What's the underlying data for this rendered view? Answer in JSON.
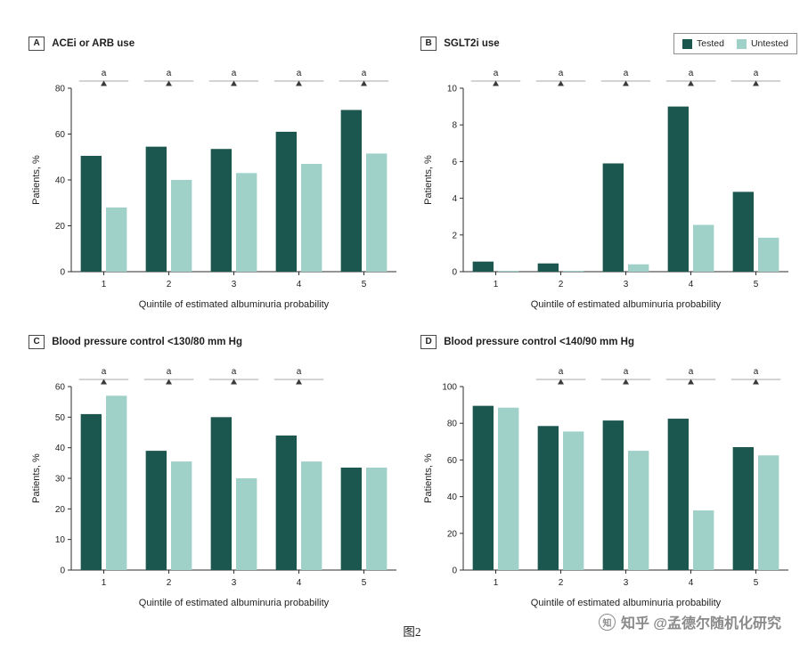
{
  "colors": {
    "tested": "#1c574f",
    "untested": "#9fd1c9",
    "axis": "#2e2e2e",
    "text": "#1f1f1f",
    "sig_line": "#8a8a8a",
    "sig_marker": "#3a3a3a"
  },
  "legend": {
    "tested": "Tested",
    "untested": "Untested"
  },
  "caption": "图2",
  "watermark": "知乎 @孟德尔随机化研究",
  "panels": [
    {
      "label": "A",
      "title": "ACEi or ARB use"
    },
    {
      "label": "B",
      "title": "SGLT2i use"
    },
    {
      "label": "C",
      "title": "Blood pressure control <130/80 mm Hg"
    },
    {
      "label": "D",
      "title": "Blood pressure control <140/90 mm Hg"
    }
  ],
  "chart_data": [
    {
      "type": "bar",
      "title": "ACEi or ARB use",
      "xlabel": "Quintile of estimated albuminuria probability",
      "ylabel": "Patients, %",
      "categories": [
        "1",
        "2",
        "3",
        "4",
        "5"
      ],
      "ylim": [
        0,
        80
      ],
      "yticks": [
        0,
        20,
        40,
        60,
        80
      ],
      "legend_position": "none",
      "grid": false,
      "series": [
        {
          "name": "Tested",
          "values": [
            50.5,
            54.5,
            53.5,
            61,
            70.5
          ]
        },
        {
          "name": "Untested",
          "values": [
            28,
            40,
            43,
            47,
            51.5
          ]
        }
      ],
      "significance": [
        "a",
        "a",
        "a",
        "a",
        "a"
      ]
    },
    {
      "type": "bar",
      "title": "SGLT2i use",
      "xlabel": "Quintile of estimated albuminuria probability",
      "ylabel": "Patients, %",
      "categories": [
        "1",
        "2",
        "3",
        "4",
        "5"
      ],
      "ylim": [
        0,
        10
      ],
      "yticks": [
        0,
        2,
        4,
        6,
        8,
        10
      ],
      "legend_position": "top-right",
      "grid": false,
      "series": [
        {
          "name": "Tested",
          "values": [
            0.55,
            0.45,
            5.9,
            9.0,
            4.35
          ]
        },
        {
          "name": "Untested",
          "values": [
            0.05,
            0.05,
            0.4,
            2.55,
            1.85
          ]
        }
      ],
      "significance": [
        "a",
        "a",
        "a",
        "a",
        "a"
      ]
    },
    {
      "type": "bar",
      "title": "Blood pressure control <130/80 mm Hg",
      "xlabel": "Quintile of estimated albuminuria probability",
      "ylabel": "Patients, %",
      "categories": [
        "1",
        "2",
        "3",
        "4",
        "5"
      ],
      "ylim": [
        0,
        60
      ],
      "yticks": [
        0,
        10,
        20,
        30,
        40,
        50,
        60
      ],
      "legend_position": "none",
      "grid": false,
      "series": [
        {
          "name": "Tested",
          "values": [
            51,
            39,
            50,
            44,
            33.5
          ]
        },
        {
          "name": "Untested",
          "values": [
            57,
            35.5,
            30,
            35.5,
            33.5
          ]
        }
      ],
      "significance": [
        "a",
        "a",
        "a",
        "a",
        null
      ]
    },
    {
      "type": "bar",
      "title": "Blood pressure control <140/90 mm Hg",
      "xlabel": "Quintile of estimated albuminuria probability",
      "ylabel": "Patients, %",
      "categories": [
        "1",
        "2",
        "3",
        "4",
        "5"
      ],
      "ylim": [
        0,
        100
      ],
      "yticks": [
        0,
        20,
        40,
        60,
        80,
        100
      ],
      "legend_position": "none",
      "grid": false,
      "series": [
        {
          "name": "Tested",
          "values": [
            89.5,
            78.5,
            81.5,
            82.5,
            67
          ]
        },
        {
          "name": "Untested",
          "values": [
            88.5,
            75.5,
            65,
            32.5,
            62.5
          ]
        }
      ],
      "significance": [
        null,
        "a",
        "a",
        "a",
        "a"
      ]
    }
  ]
}
